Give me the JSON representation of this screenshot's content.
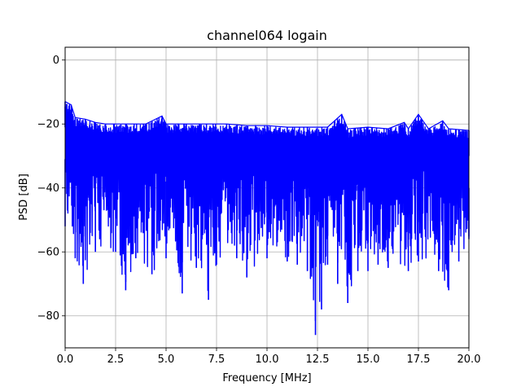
{
  "chart_data": {
    "type": "line",
    "title": "channel064 logain",
    "xlabel": "Frequency [MHz]",
    "ylabel": "PSD [dB]",
    "xlim": [
      0,
      20
    ],
    "ylim": [
      -90,
      4
    ],
    "grid": true,
    "x_ticks": [
      0,
      2.5,
      5,
      7.5,
      10,
      12.5,
      15,
      17.5,
      20
    ],
    "x_tick_labels": [
      "0.0",
      "2.5",
      "5.0",
      "7.5",
      "10.0",
      "12.5",
      "15.0",
      "17.5",
      "20.0"
    ],
    "y_ticks": [
      -80,
      -60,
      -40,
      -20,
      0
    ],
    "y_tick_labels": [
      "−80",
      "−60",
      "−40",
      "−20",
      "0"
    ],
    "series": [
      {
        "color": "#0000ff",
        "upper_envelope": {
          "x": [
            0.0,
            0.3,
            0.5,
            1.0,
            1.5,
            2.0,
            3.0,
            4.0,
            4.8,
            5.0,
            6.0,
            7.0,
            8.0,
            9.0,
            10.0,
            11.0,
            12.0,
            13.0,
            13.7,
            14.0,
            15.0,
            16.0,
            16.8,
            17.0,
            17.5,
            18.0,
            18.7,
            19.0,
            20.0
          ],
          "y": [
            -13,
            -14,
            -18,
            -18.5,
            -19.5,
            -20,
            -20,
            -20,
            -17.5,
            -20,
            -20,
            -20,
            -20,
            -20.5,
            -20.5,
            -21,
            -21,
            -21,
            -17,
            -21.5,
            -21,
            -21.5,
            -19.5,
            -21.5,
            -17,
            -21.5,
            -19,
            -21.5,
            -22
          ]
        },
        "lower_envelope": {
          "x": [
            0.0,
            0.5,
            0.9,
            1.5,
            2.5,
            3.0,
            3.5,
            4.3,
            5.0,
            5.8,
            6.5,
            7.1,
            7.5,
            8.5,
            9.0,
            10.0,
            11.0,
            11.5,
            12.0,
            12.4,
            12.7,
            13.0,
            13.5,
            14.0,
            14.5,
            15.0,
            15.5,
            16.0,
            17.0,
            17.5,
            18.5,
            19.0,
            19.5,
            20.0
          ],
          "y": [
            -52,
            -62,
            -70,
            -60,
            -60,
            -72,
            -62,
            -67,
            -62,
            -73,
            -65,
            -75,
            -64,
            -62,
            -68,
            -62,
            -63,
            -64,
            -66,
            -86,
            -78,
            -64,
            -70,
            -76,
            -66,
            -66,
            -64,
            -65,
            -66,
            -63,
            -66,
            -72,
            -63,
            -56
          ]
        }
      }
    ]
  }
}
